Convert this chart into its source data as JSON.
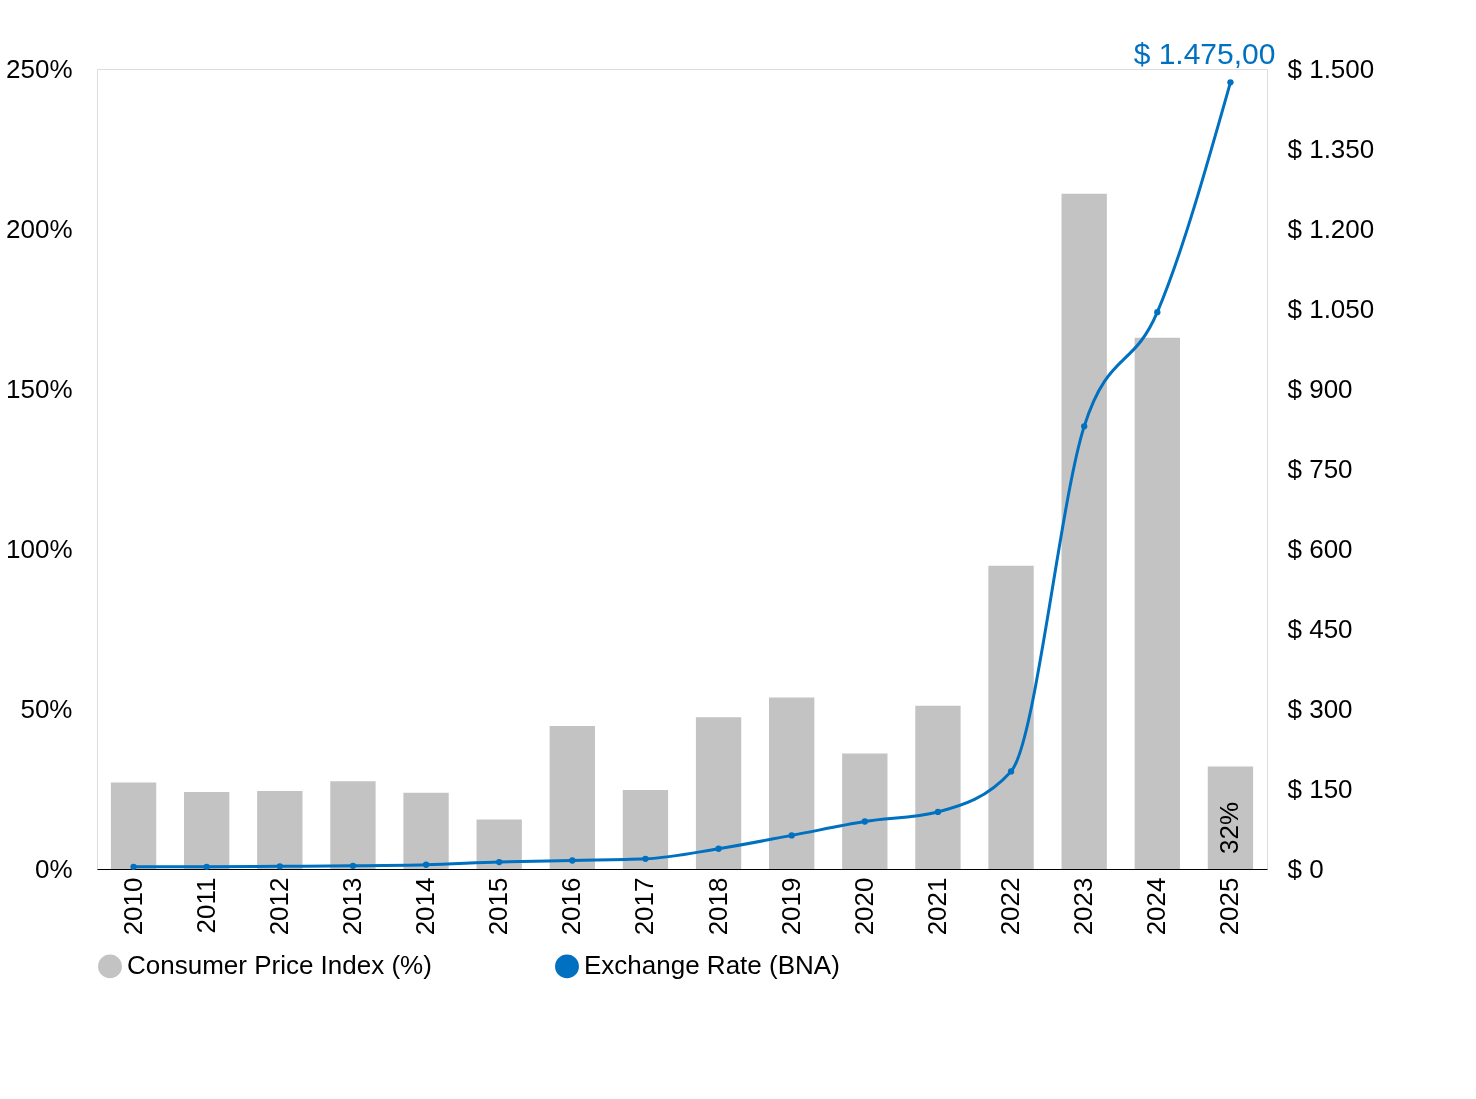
{
  "chart_data": {
    "type": "bar",
    "categories": [
      "2010",
      "2011",
      "2012",
      "2013",
      "2014",
      "2015",
      "2016",
      "2017",
      "2018",
      "2019",
      "2020",
      "2021",
      "2022",
      "2023",
      "2024",
      "2025"
    ],
    "series": [
      {
        "name": "Consumer Price Index (%)",
        "color": "#c3c3c3",
        "values": [
          27,
          24.1,
          24.4,
          27.4,
          23.8,
          15.5,
          44.7,
          24.7,
          47.4,
          53.6,
          36.1,
          51,
          94.8,
          211,
          166,
          32
        ],
        "value_labels": [
          null,
          null,
          null,
          null,
          null,
          null,
          null,
          null,
          null,
          null,
          null,
          null,
          null,
          null,
          null,
          "32%"
        ]
      },
      {
        "name": "Exchange Rate (BNA)",
        "type": "line",
        "axis": "y2",
        "color": "#0070c0",
        "marker": "circle",
        "values": [
          4,
          4,
          5,
          6,
          8,
          13,
          16,
          19,
          38,
          63,
          89,
          107,
          183,
          830,
          1044,
          1475
        ],
        "value_labels": [
          null,
          null,
          null,
          null,
          null,
          null,
          null,
          null,
          null,
          null,
          null,
          null,
          null,
          null,
          null,
          "$ 1.475,00"
        ]
      }
    ],
    "ylim": [
      0,
      250
    ],
    "yticks": [
      {
        "value": 0,
        "label": "0%"
      },
      {
        "value": 50,
        "label": "50%"
      },
      {
        "value": 100,
        "label": "100%"
      },
      {
        "value": 150,
        "label": "150%"
      },
      {
        "value": 200,
        "label": "200%"
      },
      {
        "value": 250,
        "label": "250%"
      }
    ],
    "y2lim": [
      0,
      1500
    ],
    "y2ticks": [
      {
        "value": 0,
        "label": "$ 0"
      },
      {
        "value": 150,
        "label": "$ 150"
      },
      {
        "value": 300,
        "label": "$ 300"
      },
      {
        "value": 450,
        "label": "$ 450"
      },
      {
        "value": 600,
        "label": "$ 600"
      },
      {
        "value": 750,
        "label": "$ 750"
      },
      {
        "value": 900,
        "label": "$ 900"
      },
      {
        "value": 1050,
        "label": "$ 1.050"
      },
      {
        "value": 1200,
        "label": "$ 1.200"
      },
      {
        "value": 1350,
        "label": "$ 1.350"
      },
      {
        "value": 1500,
        "label": "$ 1.500"
      }
    ],
    "grid": false,
    "legend": "bottom"
  }
}
